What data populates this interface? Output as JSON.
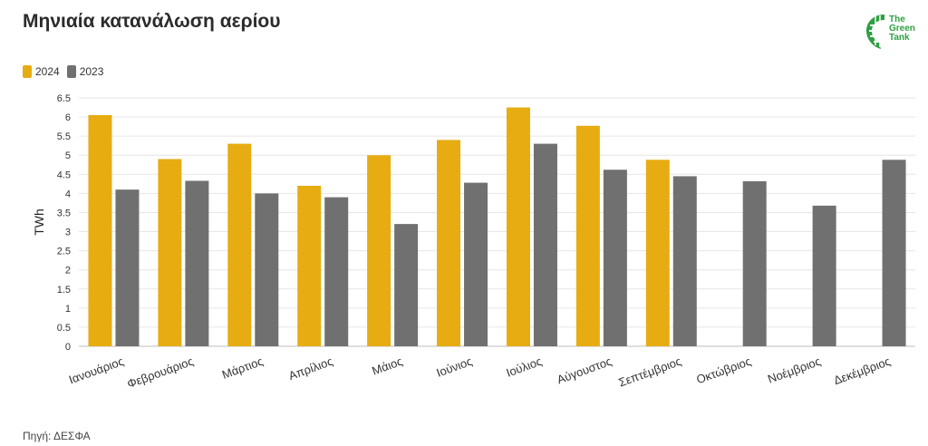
{
  "title": "Μηνιαία κατανάλωση αερίου",
  "source": "Πηγή: ΔΕΣΦΑ",
  "logo": {
    "line1": "The",
    "line2": "Green",
    "line3": "Tank",
    "color": "#2ea043"
  },
  "chart_data": {
    "type": "bar",
    "title": "Μηνιαία κατανάλωση αερίου",
    "xlabel": "",
    "ylabel": "TWh",
    "ylim": [
      0,
      6.5
    ],
    "yticks": [
      0,
      0.5,
      1,
      1.5,
      2,
      2.5,
      3,
      3.5,
      4,
      4.5,
      5,
      5.5,
      6,
      6.5
    ],
    "ytick_labels": [
      "0",
      "0.5",
      "1",
      "1.5",
      "2",
      "2.5",
      "3",
      "3.5",
      "4",
      "4.5",
      "5",
      "5.5",
      "6",
      "6.5"
    ],
    "grid": true,
    "legend_position": "top-left",
    "categories": [
      "Ιανουάριος",
      "Φεβρουάριος",
      "Μάρτιος",
      "Απρίλιος",
      "Μάιος",
      "Ιούνιος",
      "Ιούλιος",
      "Αύγουστος",
      "Σεπτέμβριος",
      "Οκτώβριος",
      "Νοέμβριος",
      "Δεκέμβριος"
    ],
    "series": [
      {
        "name": "2024",
        "color": "#e6ac12",
        "values": [
          6.05,
          4.9,
          5.3,
          4.2,
          5.0,
          5.4,
          6.25,
          5.77,
          4.88,
          null,
          null,
          null
        ]
      },
      {
        "name": "2023",
        "color": "#707070",
        "values": [
          4.1,
          4.33,
          4.0,
          3.9,
          3.2,
          4.28,
          5.3,
          4.62,
          4.45,
          4.32,
          3.68,
          4.88
        ]
      }
    ]
  }
}
